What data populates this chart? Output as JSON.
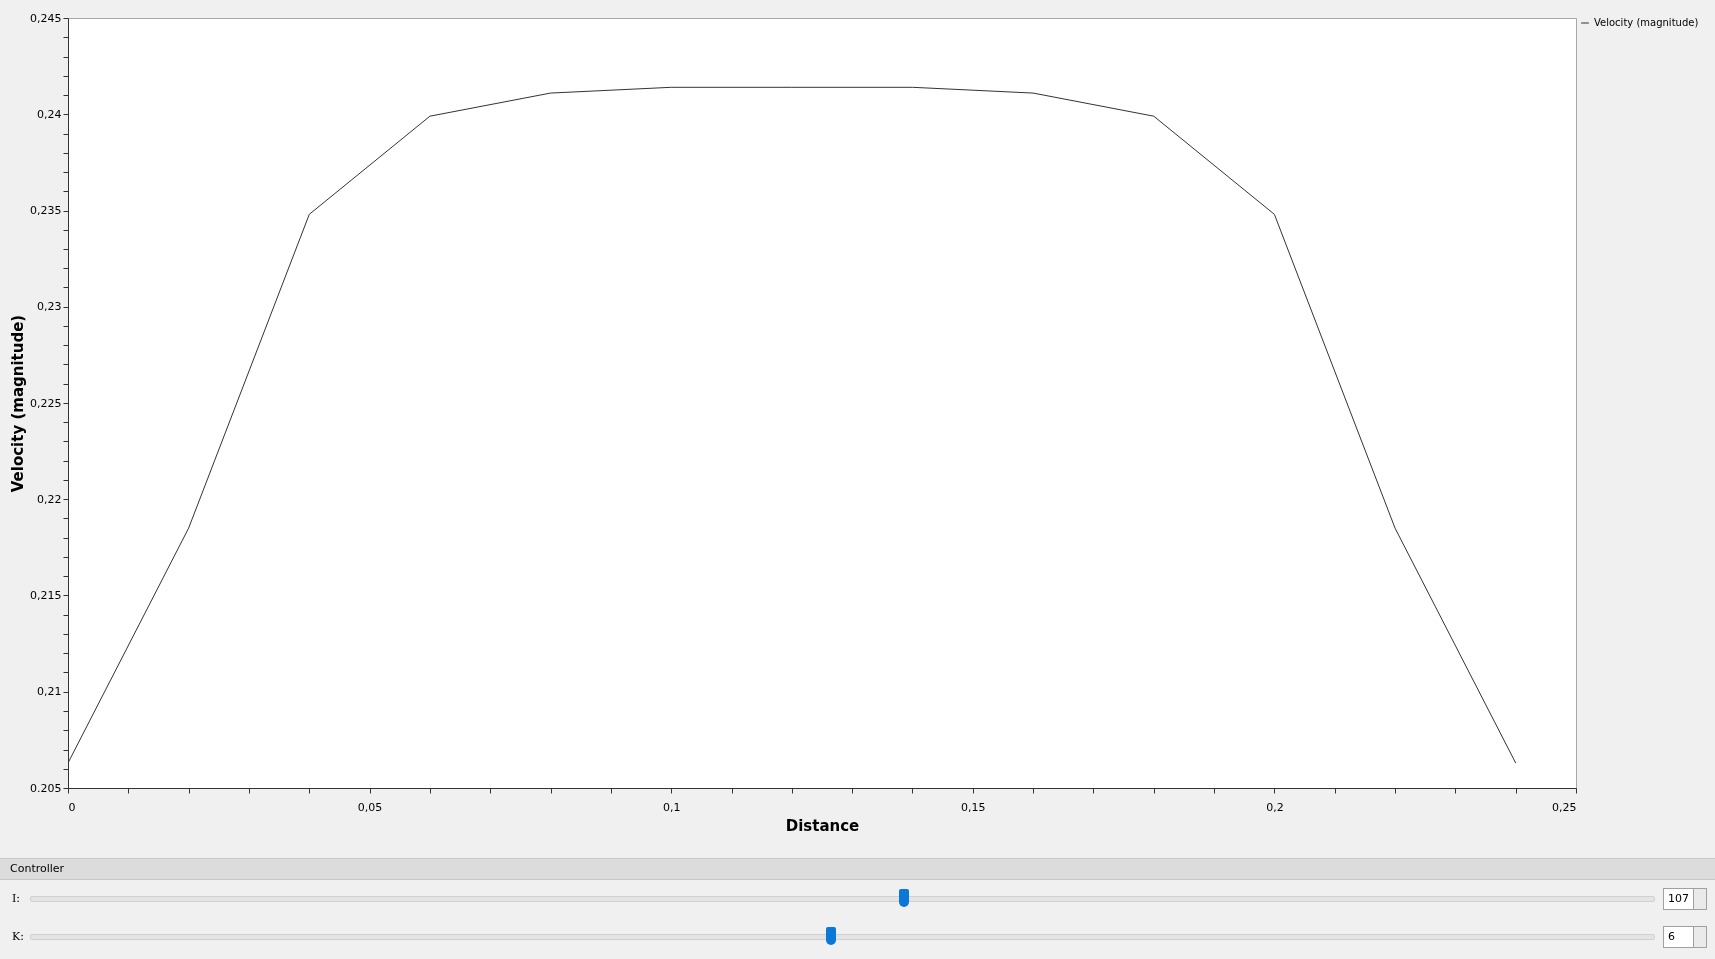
{
  "chart_data": {
    "type": "line",
    "xlabel": "Distance",
    "ylabel": "Velocity (magnitude)",
    "x": [
      0,
      0.02,
      0.04,
      0.06,
      0.08,
      0.1,
      0.12,
      0.14,
      0.16,
      0.18,
      0.2,
      0.22,
      0.24
    ],
    "series": [
      {
        "name": "Velocity (magnitude)",
        "color": "#333333",
        "values": [
          0.2063,
          0.2185,
          0.2348,
          0.2399,
          0.2411,
          0.2414,
          0.2414,
          0.2414,
          0.2411,
          0.2399,
          0.2348,
          0.2185,
          0.2063
        ]
      }
    ],
    "xlim": [
      0,
      0.25
    ],
    "ylim": [
      0.205,
      0.245
    ],
    "xticks": [
      {
        "value": 0,
        "label": "0"
      },
      {
        "value": 0.01,
        "label": null
      },
      {
        "value": 0.02,
        "label": null
      },
      {
        "value": 0.03,
        "label": null
      },
      {
        "value": 0.04,
        "label": null
      },
      {
        "value": 0.05,
        "label": "0,05"
      },
      {
        "value": 0.06,
        "label": null
      },
      {
        "value": 0.07,
        "label": null
      },
      {
        "value": 0.08,
        "label": null
      },
      {
        "value": 0.09,
        "label": null
      },
      {
        "value": 0.1,
        "label": "0,1"
      },
      {
        "value": 0.11,
        "label": null
      },
      {
        "value": 0.12,
        "label": null
      },
      {
        "value": 0.13,
        "label": null
      },
      {
        "value": 0.14,
        "label": null
      },
      {
        "value": 0.15,
        "label": "0,15"
      },
      {
        "value": 0.16,
        "label": null
      },
      {
        "value": 0.17,
        "label": null
      },
      {
        "value": 0.18,
        "label": null
      },
      {
        "value": 0.19,
        "label": null
      },
      {
        "value": 0.2,
        "label": "0,2"
      },
      {
        "value": 0.21,
        "label": null
      },
      {
        "value": 0.22,
        "label": null
      },
      {
        "value": 0.23,
        "label": null
      },
      {
        "value": 0.24,
        "label": null
      },
      {
        "value": 0.25,
        "label": "0,25"
      }
    ],
    "yticks": [
      {
        "value": 0.205,
        "label": "0.205"
      },
      {
        "value": 0.206,
        "label": null
      },
      {
        "value": 0.207,
        "label": null
      },
      {
        "value": 0.208,
        "label": null
      },
      {
        "value": 0.209,
        "label": null
      },
      {
        "value": 0.21,
        "label": "0,21"
      },
      {
        "value": 0.211,
        "label": null
      },
      {
        "value": 0.212,
        "label": null
      },
      {
        "value": 0.213,
        "label": null
      },
      {
        "value": 0.214,
        "label": null
      },
      {
        "value": 0.215,
        "label": "0,215"
      },
      {
        "value": 0.216,
        "label": null
      },
      {
        "value": 0.217,
        "label": null
      },
      {
        "value": 0.218,
        "label": null
      },
      {
        "value": 0.219,
        "label": null
      },
      {
        "value": 0.22,
        "label": "0,22"
      },
      {
        "value": 0.221,
        "label": null
      },
      {
        "value": 0.222,
        "label": null
      },
      {
        "value": 0.223,
        "label": null
      },
      {
        "value": 0.224,
        "label": null
      },
      {
        "value": 0.225,
        "label": "0,225"
      },
      {
        "value": 0.226,
        "label": null
      },
      {
        "value": 0.227,
        "label": null
      },
      {
        "value": 0.228,
        "label": null
      },
      {
        "value": 0.229,
        "label": null
      },
      {
        "value": 0.23,
        "label": "0,23"
      },
      {
        "value": 0.231,
        "label": null
      },
      {
        "value": 0.232,
        "label": null
      },
      {
        "value": 0.233,
        "label": null
      },
      {
        "value": 0.234,
        "label": null
      },
      {
        "value": 0.235,
        "label": "0,235"
      },
      {
        "value": 0.236,
        "label": null
      },
      {
        "value": 0.237,
        "label": null
      },
      {
        "value": 0.238,
        "label": null
      },
      {
        "value": 0.239,
        "label": null
      },
      {
        "value": 0.24,
        "label": "0,24"
      },
      {
        "value": 0.241,
        "label": null
      },
      {
        "value": 0.242,
        "label": null
      },
      {
        "value": 0.243,
        "label": null
      },
      {
        "value": 0.244,
        "label": null
      },
      {
        "value": 0.245,
        "label": "0,245"
      }
    ],
    "grid": false,
    "legend": "top right",
    "marker": "none",
    "line_style": "solid",
    "annotations": [
      "Controller",
      "I:",
      "107",
      "K:",
      "6"
    ]
  }
}
